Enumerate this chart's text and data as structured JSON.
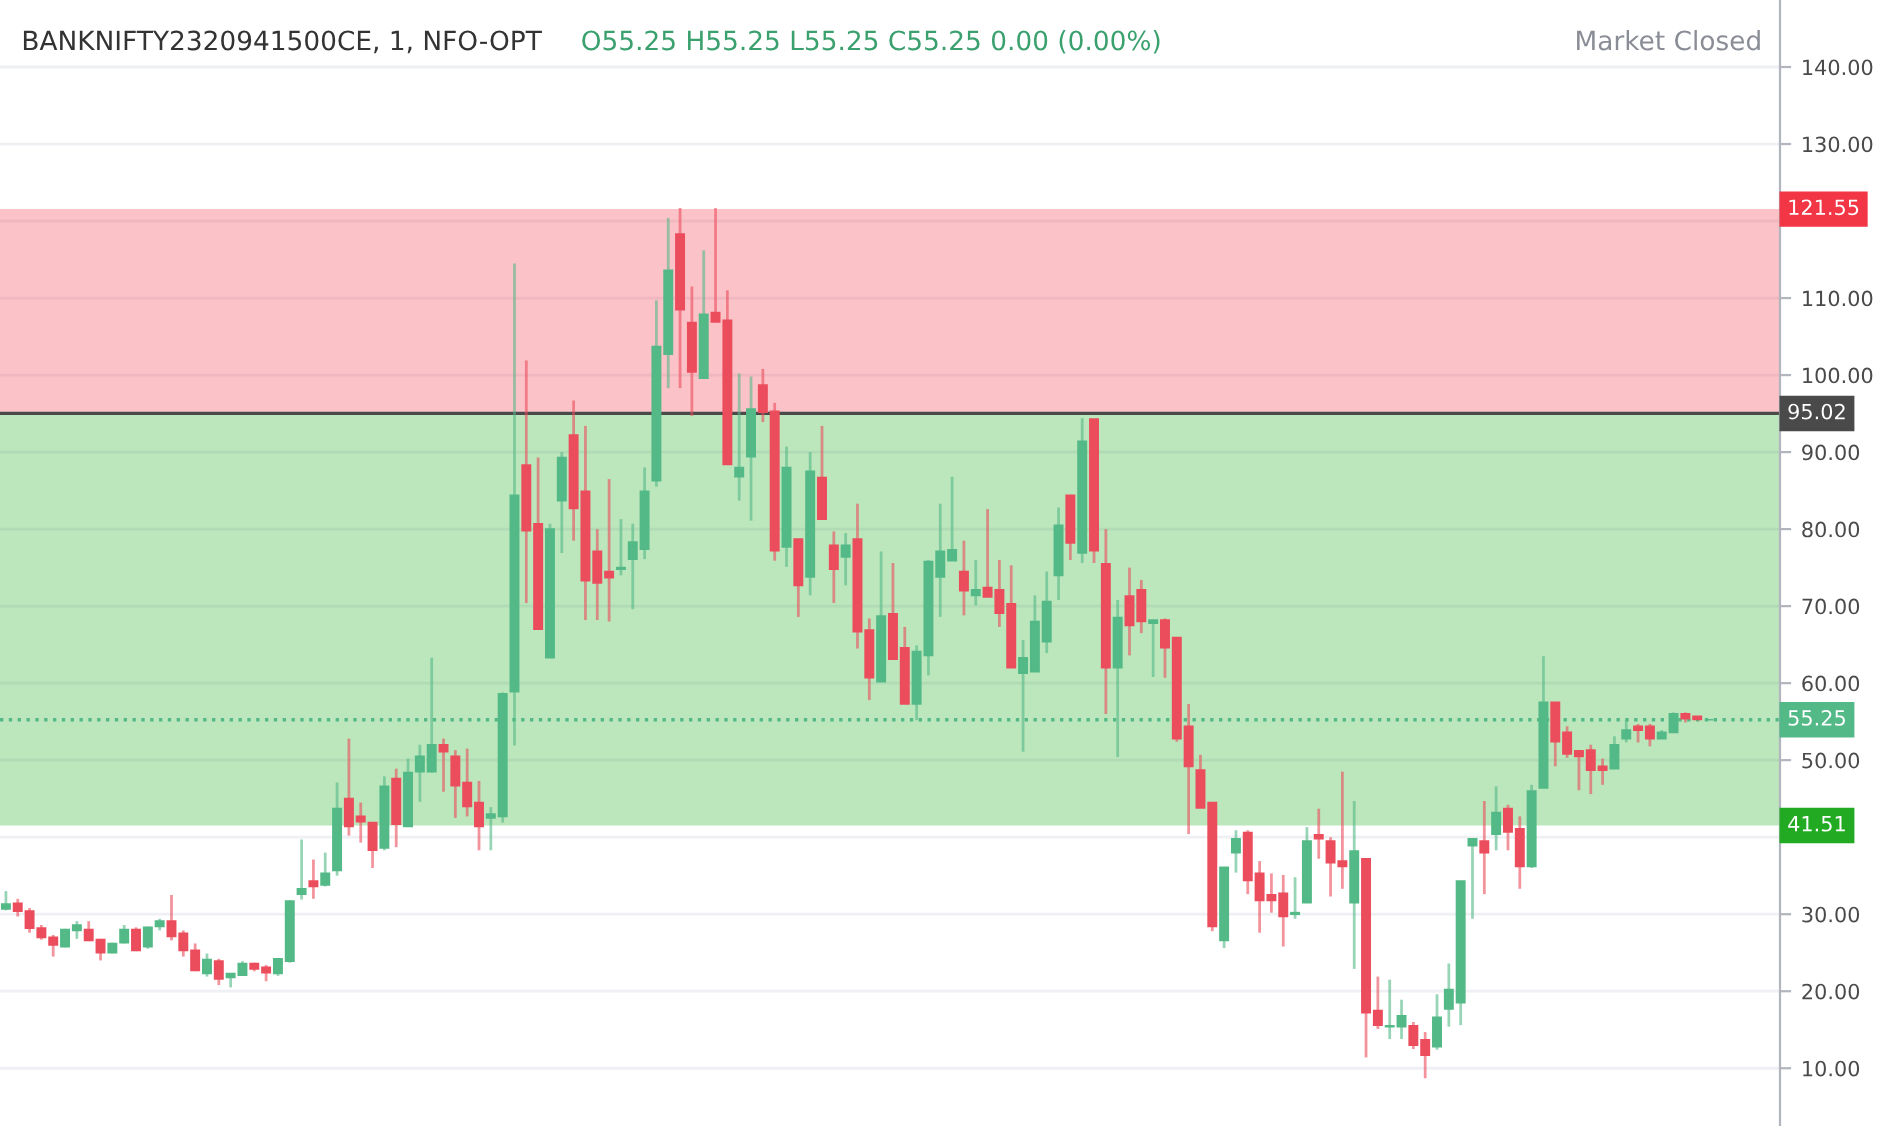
{
  "chart_data": {
    "type": "candlestick",
    "title": "BANKNIFTY2320941500CE, 1, NFO-OPT",
    "subtitle": "O55.25 H55.25 L55.25 C55.25 0.00 (0.00%)",
    "annotations": [
      "Market Closed"
    ],
    "categories": [
      null,
      null,
      null,
      null,
      null,
      null,
      null,
      null,
      null,
      null,
      null,
      null,
      null,
      null,
      null,
      null,
      null,
      null,
      null,
      null,
      null,
      null,
      null,
      null,
      null,
      null,
      null,
      null,
      null,
      null,
      null,
      null,
      null,
      null,
      null,
      null,
      null,
      null,
      null,
      null,
      null,
      null,
      null,
      null,
      null,
      null,
      null,
      null,
      null,
      null,
      null,
      null,
      null,
      null,
      null,
      null,
      null,
      null,
      null,
      null,
      null,
      null,
      null,
      null,
      null,
      null,
      null,
      null,
      null,
      null,
      null,
      null,
      null,
      null,
      null,
      null,
      null,
      null,
      null,
      null,
      null,
      null,
      null,
      null,
      null,
      null,
      null,
      null,
      null,
      null,
      null,
      null,
      null,
      null,
      null,
      null,
      null,
      null,
      null,
      null,
      null,
      null,
      null,
      null,
      null,
      null,
      null,
      null,
      null,
      null,
      null,
      null,
      null,
      null,
      null,
      null,
      null,
      null,
      null,
      null,
      null,
      null,
      null,
      null,
      null,
      null,
      null,
      null,
      null,
      null,
      null,
      null,
      null,
      null,
      null,
      null,
      null,
      null,
      null,
      null,
      null,
      null,
      null,
      null,
      null
    ],
    "ohlc": [
      [
        30.7,
        33,
        30.5,
        31.3
      ],
      [
        31.4,
        32,
        29.7,
        30.4
      ],
      [
        30.4,
        30.8,
        27.6,
        28.2
      ],
      [
        28.2,
        28.6,
        26.7,
        27
      ],
      [
        27,
        27.3,
        24.5,
        26
      ],
      [
        25.8,
        28.1,
        25.7,
        28
      ],
      [
        27.9,
        29.1,
        26.8,
        28.6
      ],
      [
        28,
        29.1,
        26.5,
        26.6
      ],
      [
        26.7,
        26.8,
        24,
        25
      ],
      [
        25,
        26.3,
        24.9,
        26.2
      ],
      [
        26.3,
        28.6,
        26.2,
        28
      ],
      [
        28,
        28.3,
        25.2,
        25.3
      ],
      [
        25.8,
        28.4,
        25.5,
        28.3
      ],
      [
        28.4,
        29.4,
        27.9,
        29.1
      ],
      [
        29.1,
        32.5,
        26.6,
        27.1
      ],
      [
        27.5,
        27.9,
        24.5,
        25.3
      ],
      [
        25.3,
        26.2,
        22.6,
        22.7
      ],
      [
        22.3,
        24.9,
        21.9,
        24.1
      ],
      [
        23.9,
        24.2,
        20.8,
        21.6
      ],
      [
        21.8,
        22.3,
        20.5,
        22.3
      ],
      [
        22.1,
        23.9,
        22,
        23.6
      ],
      [
        23.6,
        23.7,
        22.6,
        22.9
      ],
      [
        23.1,
        23.4,
        21.3,
        22.4
      ],
      [
        22.3,
        24.3,
        22,
        24.2
      ],
      [
        23.9,
        31.8,
        23.7,
        31.7
      ],
      [
        32.6,
        39.7,
        31.9,
        33.3
      ],
      [
        34.3,
        37.1,
        32,
        33.6
      ],
      [
        33.8,
        38,
        33.6,
        35.3
      ],
      [
        35.7,
        47.1,
        35,
        43.7
      ],
      [
        45,
        52.8,
        40.2,
        41.4
      ],
      [
        42.7,
        44.5,
        39.3,
        42
      ],
      [
        41.9,
        41.9,
        36,
        38.3
      ],
      [
        38.6,
        47.9,
        38.3,
        46.6
      ],
      [
        47.6,
        48.9,
        38.7,
        41.7
      ],
      [
        41.4,
        50.2,
        41.4,
        48.4
      ],
      [
        48.5,
        52,
        44.6,
        50.5
      ],
      [
        48.5,
        63.3,
        48.4,
        52
      ],
      [
        52,
        52.8,
        45.9,
        51.1
      ],
      [
        50.5,
        51.3,
        42.5,
        46.7
      ],
      [
        47.1,
        51.5,
        42.7,
        44
      ],
      [
        44.5,
        47.3,
        38.3,
        41.4
      ],
      [
        42.5,
        43.9,
        38.3,
        43
      ],
      [
        42.7,
        58.8,
        41.9,
        58.6
      ],
      [
        58.9,
        114.5,
        51.9,
        84.4
      ],
      [
        88.3,
        101.9,
        70.4,
        79.8
      ],
      [
        80.7,
        89.3,
        67,
        67
      ],
      [
        63.3,
        80.7,
        63.3,
        80
      ],
      [
        83.7,
        90,
        76.9,
        89.3
      ],
      [
        92.2,
        96.7,
        78.5,
        82.7
      ],
      [
        84.9,
        93.4,
        68.2,
        73.3
      ],
      [
        77.1,
        80,
        68.2,
        73
      ],
      [
        74.5,
        86.5,
        68,
        73.7
      ],
      [
        74.8,
        81.3,
        74,
        75
      ],
      [
        76.1,
        80.7,
        69.6,
        78.3
      ],
      [
        77.4,
        88,
        76.1,
        84.9
      ],
      [
        86.3,
        109.7,
        85.5,
        103.7
      ],
      [
        102.7,
        120.4,
        98.3,
        113.6
      ],
      [
        118.3,
        121.7,
        98.3,
        108.5
      ],
      [
        106.8,
        111.5,
        94.7,
        100.4
      ],
      [
        99.6,
        116.2,
        99.6,
        107.9
      ],
      [
        108.1,
        121.7,
        106.9,
        106.9
      ],
      [
        107.1,
        111,
        88.4,
        88.4
      ],
      [
        86.8,
        100.2,
        83.7,
        88
      ],
      [
        89.4,
        99.8,
        81.1,
        95.6
      ],
      [
        98.7,
        100.8,
        93.9,
        95.2
      ],
      [
        95.3,
        96.4,
        75.9,
        77.2
      ],
      [
        77.7,
        90.7,
        75.1,
        88
      ],
      [
        78.7,
        78.7,
        68.6,
        72.7
      ],
      [
        73.8,
        90,
        71.4,
        87.5
      ],
      [
        86.7,
        93.4,
        81.3,
        81.3
      ],
      [
        77.9,
        79.7,
        70.4,
        74.8
      ],
      [
        76.4,
        79.5,
        72.7,
        77.9
      ],
      [
        78.7,
        83.3,
        64.5,
        66.7
      ],
      [
        66.9,
        68.4,
        57.8,
        60.7
      ],
      [
        60.2,
        77.1,
        60.2,
        68.7
      ],
      [
        69,
        75.6,
        63.1,
        63.1
      ],
      [
        64.6,
        67.3,
        57.3,
        57.3
      ],
      [
        57.3,
        64.9,
        55.2,
        64.1
      ],
      [
        63.6,
        76,
        61,
        75.8
      ],
      [
        73.8,
        83.3,
        68.6,
        77.1
      ],
      [
        75.9,
        86.8,
        75.9,
        77.3
      ],
      [
        74.5,
        78.5,
        68.8,
        72
      ],
      [
        71.4,
        76,
        70.1,
        72.1
      ],
      [
        72.4,
        82.6,
        71.2,
        71.2
      ],
      [
        72.1,
        76,
        67.3,
        69.1
      ],
      [
        70.3,
        75.3,
        62,
        62
      ],
      [
        61.3,
        65.6,
        51.1,
        63.3
      ],
      [
        61.5,
        71.4,
        61.5,
        68
      ],
      [
        65.4,
        74.5,
        63.9,
        70.6
      ],
      [
        74,
        82.8,
        70.8,
        80.5
      ],
      [
        84.4,
        84.4,
        76,
        78.2
      ],
      [
        76.9,
        94.4,
        75.6,
        91.4
      ],
      [
        94.3,
        94.3,
        75.6,
        77.2
      ],
      [
        75.5,
        80,
        56,
        62
      ],
      [
        62,
        70.8,
        50.4,
        68.5
      ],
      [
        71.3,
        75,
        63.6,
        67.5
      ],
      [
        72.1,
        73.4,
        66.5,
        68
      ],
      [
        67.8,
        68.2,
        60.8,
        68.2
      ],
      [
        68.2,
        68.4,
        60.7,
        64.6
      ],
      [
        65.9,
        65.9,
        52.4,
        52.8
      ],
      [
        54.4,
        57.3,
        40.4,
        49.2
      ],
      [
        48.7,
        50.7,
        43.8,
        43.8
      ],
      [
        44.5,
        44.5,
        27.8,
        28.4
      ],
      [
        26.6,
        36.1,
        25.6,
        36.1
      ],
      [
        38,
        40.9,
        35.4,
        39.8
      ],
      [
        40.6,
        40.9,
        32.6,
        34.4
      ],
      [
        35.3,
        36.9,
        27.6,
        31.8
      ],
      [
        32.5,
        35.3,
        30.2,
        31.8
      ],
      [
        32.7,
        35.1,
        25.8,
        29.7
      ],
      [
        30,
        34.8,
        29.4,
        30.2
      ],
      [
        31.5,
        41.3,
        31.5,
        39.5
      ],
      [
        40.3,
        43.7,
        37.2,
        39.8
      ],
      [
        39.5,
        40,
        32.3,
        36.7
      ],
      [
        36.9,
        48.5,
        33.3,
        36.2
      ],
      [
        31.5,
        44.7,
        22.9,
        38.2
      ],
      [
        37.2,
        37.2,
        11.4,
        17.2
      ],
      [
        17.5,
        21.9,
        15.1,
        15.6
      ],
      [
        15.4,
        21.5,
        13.8,
        15.5
      ],
      [
        15.4,
        18.9,
        13.8,
        16.8
      ],
      [
        15.5,
        16,
        12.5,
        13
      ],
      [
        13.7,
        14.7,
        8.7,
        11.7
      ],
      [
        12.8,
        19.6,
        12.4,
        16.6
      ],
      [
        17.7,
        23.6,
        15.4,
        20.2
      ],
      [
        18.5,
        34.3,
        15.6,
        34.3
      ],
      [
        38.9,
        39.8,
        29.4,
        39.8
      ],
      [
        39.5,
        44.7,
        32.6,
        38
      ],
      [
        40.4,
        46.6,
        38.3,
        43.2
      ],
      [
        43.7,
        44.2,
        38.3,
        40.7
      ],
      [
        41.1,
        42.7,
        33.3,
        36.2
      ],
      [
        36.2,
        46.8,
        36,
        46
      ],
      [
        46.4,
        63.5,
        46.4,
        57.5
      ],
      [
        57.5,
        57.5,
        49.2,
        52.4
      ],
      [
        53.6,
        54.4,
        50.3,
        50.8
      ],
      [
        51.2,
        51.2,
        46.1,
        50.5
      ],
      [
        51.3,
        52,
        45.6,
        48.7
      ],
      [
        49.2,
        50.2,
        46.8,
        48.7
      ],
      [
        48.9,
        53.1,
        48.9,
        52
      ],
      [
        52.8,
        55.2,
        52.3,
        53.9
      ],
      [
        54.4,
        54.7,
        52.3,
        53.9
      ],
      [
        54.4,
        54.7,
        51.8,
        52.8
      ],
      [
        52.8,
        53.9,
        52.8,
        53.6
      ],
      [
        53.6,
        56.2,
        53.6,
        56
      ],
      [
        56,
        56.2,
        54.9,
        55.4
      ],
      [
        55.7,
        55.7,
        55.3,
        55.3
      ],
      [
        55.25,
        55.25,
        55.25,
        55.25
      ]
    ],
    "colors": [
      "#53b987",
      "#eb4d5c",
      "#eb4d5c",
      "#eb4d5c",
      "#eb4d5c",
      "#53b987",
      "#53b987",
      "#eb4d5c",
      "#eb4d5c",
      "#53b987",
      "#53b987",
      "#eb4d5c",
      "#53b987",
      "#53b987",
      "#eb4d5c",
      "#eb4d5c",
      "#eb4d5c",
      "#53b987",
      "#eb4d5c",
      "#53b987",
      "#53b987",
      "#eb4d5c",
      "#eb4d5c",
      "#53b987",
      "#53b987",
      "#53b987",
      "#eb4d5c",
      "#53b987",
      "#53b987",
      "#eb4d5c",
      "#eb4d5c",
      "#eb4d5c",
      "#53b987",
      "#eb4d5c",
      "#53b987",
      "#53b987",
      "#53b987",
      "#eb4d5c",
      "#eb4d5c",
      "#eb4d5c",
      "#eb4d5c",
      "#53b987",
      "#53b987",
      "#53b987",
      "#eb4d5c",
      "#eb4d5c",
      "#53b987",
      "#53b987",
      "#eb4d5c",
      "#eb4d5c",
      "#eb4d5c",
      "#eb4d5c",
      "#53b987",
      "#53b987",
      "#53b987",
      "#53b987",
      "#53b987",
      "#eb4d5c",
      "#eb4d5c",
      "#53b987",
      "#eb4d5c",
      "#eb4d5c",
      "#53b987",
      "#53b987",
      "#eb4d5c",
      "#eb4d5c",
      "#53b987",
      "#eb4d5c",
      "#53b987",
      "#eb4d5c",
      "#eb4d5c",
      "#53b987",
      "#eb4d5c",
      "#eb4d5c",
      "#53b987",
      "#eb4d5c",
      "#eb4d5c",
      "#53b987",
      "#53b987",
      "#53b987",
      "#53b987",
      "#eb4d5c",
      "#53b987",
      "#eb4d5c",
      "#eb4d5c",
      "#eb4d5c",
      "#53b987",
      "#53b987",
      "#53b987",
      "#53b987",
      "#eb4d5c",
      "#53b987",
      "#eb4d5c",
      "#eb4d5c",
      "#53b987",
      "#eb4d5c",
      "#eb4d5c",
      "#53b987",
      "#eb4d5c",
      "#eb4d5c",
      "#eb4d5c",
      "#eb4d5c",
      "#eb4d5c",
      "#53b987",
      "#53b987",
      "#eb4d5c",
      "#eb4d5c",
      "#eb4d5c",
      "#eb4d5c",
      "#53b987",
      "#53b987",
      "#eb4d5c",
      "#eb4d5c",
      "#eb4d5c",
      "#53b987",
      "#eb4d5c",
      "#eb4d5c",
      "#53b987",
      "#53b987",
      "#eb4d5c",
      "#eb4d5c",
      "#53b987",
      "#53b987",
      "#53b987",
      "#53b987",
      "#eb4d5c",
      "#53b987",
      "#eb4d5c",
      "#eb4d5c",
      "#53b987",
      "#53b987",
      "#eb4d5c",
      "#eb4d5c",
      "#eb4d5c",
      "#eb4d5c",
      "#eb4d5c",
      "#53b987",
      "#53b987",
      "#eb4d5c",
      "#eb4d5c",
      "#53b987",
      "#53b987",
      "#eb4d5c",
      "#eb4d5c",
      "#53b987"
    ],
    "ylim": [
      2.5,
      148.7
    ],
    "yticks": [
      {
        "value": 10,
        "label": "10.00"
      },
      {
        "value": 20,
        "label": "20.00"
      },
      {
        "value": 30,
        "label": "30.00"
      },
      {
        "value": 40,
        "label": null
      },
      {
        "value": 50,
        "label": "50.00"
      },
      {
        "value": 60,
        "label": "60.00"
      },
      {
        "value": 70,
        "label": "70.00"
      },
      {
        "value": 80,
        "label": "80.00"
      },
      {
        "value": 90,
        "label": "90.00"
      },
      {
        "value": 100,
        "label": "100.00"
      },
      {
        "value": 110,
        "label": "110.00"
      },
      {
        "value": 120,
        "label": null
      },
      {
        "value": 130,
        "label": "130.00"
      },
      {
        "value": 140,
        "label": "140.00"
      }
    ],
    "grid": "y",
    "bands": [
      {
        "axis": "y",
        "from": 95.02,
        "to": 121.55,
        "label": "121.55",
        "color": "#f23645"
      },
      {
        "axis": "y",
        "from": 95.02,
        "to": 41.51,
        "label": "41.51",
        "color": "#22ab22"
      }
    ],
    "ref_lines": [
      {
        "axis": "y",
        "value": 95.02,
        "label": "95.02",
        "color": "#4a4a4a",
        "line_style": "solid"
      },
      {
        "axis": "y",
        "value": 55.25,
        "label": "55.25",
        "color": "#53b987",
        "line_style": "dotted"
      }
    ]
  }
}
